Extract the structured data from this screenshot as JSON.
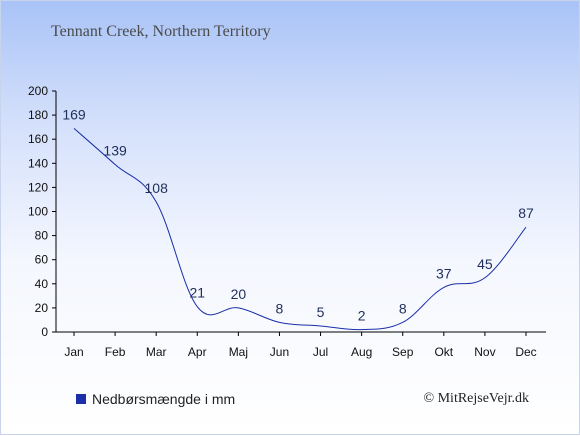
{
  "chart_data": {
    "type": "line",
    "title": "Tennant Creek, Northern Territory",
    "categories": [
      "Jan",
      "Feb",
      "Mar",
      "Apr",
      "Maj",
      "Jun",
      "Jul",
      "Aug",
      "Sep",
      "Okt",
      "Nov",
      "Dec"
    ],
    "series": [
      {
        "name": "Nedbørsmængde i mm",
        "values": [
          169,
          139,
          108,
          21,
          20,
          8,
          5,
          2,
          8,
          37,
          45,
          87
        ]
      }
    ],
    "xlabel": "",
    "ylabel": "",
    "ylim": [
      0,
      200
    ],
    "yticks": [
      0,
      20,
      40,
      60,
      80,
      100,
      120,
      140,
      160,
      180,
      200
    ],
    "grid": false,
    "legend": "bottom-left",
    "line_color": "#1a2fa8",
    "label_color": "#1f2f5a"
  },
  "credit": "© MitRejseVejr.dk"
}
